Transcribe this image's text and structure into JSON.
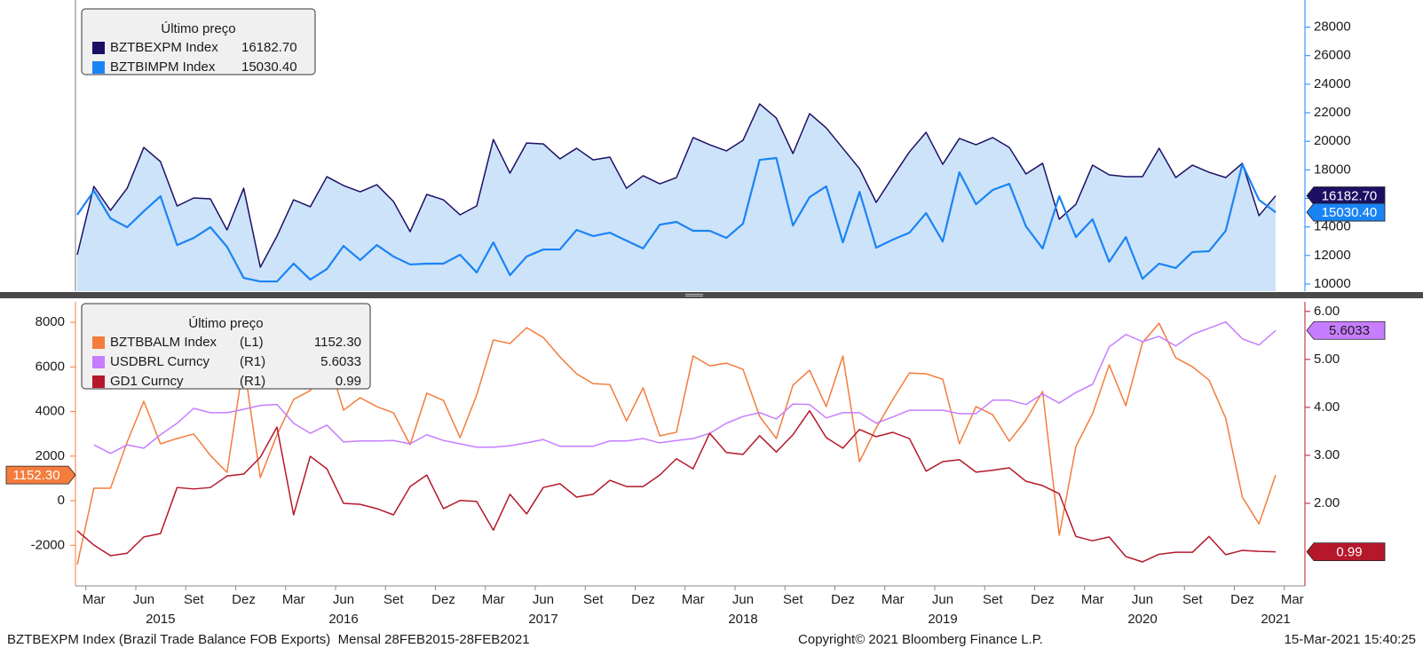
{
  "chart_data": [
    {
      "type": "line",
      "legend_title": "Último preço",
      "y_axis_side": "right",
      "y_axis_color": "#1a84f5",
      "ylim": [
        9500,
        29900
      ],
      "yticks": [
        10000,
        12000,
        14000,
        16000,
        18000,
        20000,
        22000,
        24000,
        26000,
        28000
      ],
      "series": [
        {
          "name": "BZTBEXPM Index",
          "last_label": "16182.70",
          "color": "#1c1064",
          "tag_text_color": "#ffffff",
          "area_color": "#cde3fa",
          "values": [
            12050,
            16840,
            15160,
            16710,
            19570,
            18580,
            15470,
            16030,
            15970,
            13790,
            16710,
            11180,
            13360,
            15900,
            15410,
            17520,
            16900,
            16460,
            16960,
            15780,
            13670,
            16280,
            15900,
            14850,
            15470,
            20130,
            17770,
            19880,
            19820,
            18770,
            19510,
            18700,
            18890,
            16710,
            17590,
            17020,
            17460,
            20260,
            19760,
            19330,
            20070,
            22620,
            21630,
            19140,
            21940,
            20940,
            19510,
            18080,
            15720,
            17520,
            19260,
            20630,
            18390,
            20200,
            19760,
            20260,
            19570,
            17710,
            18460,
            14540,
            15590,
            18330,
            17650,
            17520,
            17520,
            19510,
            17460,
            18330,
            17830,
            17460,
            18460,
            14790,
            16182.7
          ]
        },
        {
          "name": "BZTBIMPM Index",
          "last_label": "15030.40",
          "color": "#1a84f5",
          "tag_text_color": "#ffffff",
          "values": [
            14850,
            16530,
            14600,
            13980,
            15100,
            16150,
            12730,
            13230,
            13980,
            12610,
            10430,
            10180,
            10180,
            11430,
            10310,
            11050,
            12670,
            11680,
            12730,
            11930,
            11370,
            11430,
            11430,
            12050,
            10810,
            12920,
            10620,
            11930,
            12420,
            12420,
            13790,
            13360,
            13600,
            13040,
            12490,
            14160,
            14350,
            13730,
            13730,
            13230,
            14230,
            18700,
            18830,
            14100,
            16090,
            16840,
            12920,
            16460,
            12550,
            13110,
            13600,
            14970,
            12980,
            17830,
            15590,
            16590,
            17020,
            14040,
            12490,
            16150,
            13290,
            14540,
            11550,
            13290,
            10370,
            11430,
            11120,
            12240,
            12300,
            13730,
            18390,
            15900,
            15030.4
          ]
        }
      ]
    },
    {
      "type": "line",
      "legend_title": "Último preço",
      "y_axis_color": "#f47c3c",
      "y2_axis_color": "#b5182b",
      "ylim": [
        -3820,
        8920
      ],
      "yticks": [
        -2000,
        0,
        2000,
        4000,
        6000,
        8000
      ],
      "y2lim": [
        0.28,
        6.2
      ],
      "y2ticks": [
        {
          "value": 2,
          "label": "2.00"
        },
        {
          "value": 3,
          "label": "3.00"
        },
        {
          "value": 4,
          "label": "4.00"
        },
        {
          "value": 5,
          "label": "5.00"
        },
        {
          "value": 6,
          "label": "6.00"
        }
      ],
      "series": [
        {
          "name": "BZTBBALM Index",
          "axis_label": "(L1)",
          "last_label": "1152.30",
          "color": "#f47c3c",
          "tag_text_color": "#ffffff",
          "values": [
            -2870,
            560,
            560,
            2630,
            4460,
            2550,
            2790,
            2990,
            2030,
            1270,
            6210,
            1040,
            2950,
            4540,
            4940,
            6530,
            4060,
            4620,
            4220,
            3940,
            2510,
            4820,
            4500,
            2830,
            4740,
            7210,
            7050,
            7760,
            7320,
            6450,
            5690,
            5250,
            5210,
            3580,
            5060,
            2910,
            3070,
            6490,
            6050,
            6170,
            5890,
            3780,
            2790,
            5180,
            5850,
            4220,
            6490,
            1750,
            3260,
            4540,
            5730,
            5690,
            5450,
            2550,
            4220,
            3860,
            2670,
            3620,
            4900,
            -1550,
            2430,
            3900,
            6090,
            4260,
            7090,
            7960,
            6410,
            6010,
            5410,
            3700,
            160,
            -1040,
            1152.3
          ]
        },
        {
          "name": "USDBRL Curncy",
          "axis_label": "(R1)",
          "last_label": "5.6033",
          "color": "#c77dff",
          "tag_text_color": "#1a1a1a",
          "axis": "y2",
          "values": [
            null,
            3.22,
            3.04,
            3.22,
            3.15,
            3.43,
            3.67,
            3.98,
            3.89,
            3.89,
            3.96,
            4.04,
            4.06,
            3.67,
            3.46,
            3.63,
            3.28,
            3.3,
            3.3,
            3.31,
            3.24,
            3.43,
            3.31,
            3.24,
            3.17,
            3.17,
            3.2,
            3.26,
            3.33,
            3.19,
            3.19,
            3.19,
            3.3,
            3.3,
            3.35,
            3.26,
            3.31,
            3.35,
            3.46,
            3.67,
            3.81,
            3.89,
            3.76,
            4.07,
            4.06,
            3.78,
            3.89,
            3.89,
            3.67,
            3.8,
            3.94,
            3.94,
            3.94,
            3.87,
            3.87,
            4.15,
            4.15,
            4.06,
            4.28,
            4.09,
            4.31,
            4.48,
            5.26,
            5.52,
            5.37,
            5.48,
            5.28,
            5.52,
            5.65,
            5.78,
            5.43,
            5.3,
            5.6033
          ]
        },
        {
          "name": "GD1 Curncy",
          "axis_label": "(R1)",
          "last_label": "0.99",
          "color": "#b5182b",
          "tag_text_color": "#ffffff",
          "axis": "y2",
          "values": [
            1.43,
            1.13,
            0.91,
            0.96,
            1.3,
            1.37,
            2.33,
            2.3,
            2.33,
            2.57,
            2.61,
            2.96,
            3.59,
            1.76,
            2.98,
            2.72,
            2.0,
            1.98,
            1.89,
            1.76,
            2.35,
            2.59,
            1.89,
            2.06,
            2.04,
            1.44,
            2.19,
            1.78,
            2.33,
            2.41,
            2.13,
            2.19,
            2.48,
            2.35,
            2.35,
            2.59,
            2.93,
            2.72,
            3.46,
            3.06,
            3.02,
            3.41,
            3.07,
            3.43,
            3.93,
            3.37,
            3.15,
            3.54,
            3.39,
            3.48,
            3.35,
            2.67,
            2.87,
            2.91,
            2.65,
            2.69,
            2.74,
            2.46,
            2.37,
            2.2,
            1.31,
            1.22,
            1.3,
            0.89,
            0.78,
            0.94,
            0.98,
            0.98,
            1.31,
            0.93,
            1.02,
            1.0,
            0.99
          ]
        }
      ]
    }
  ],
  "x_axis": {
    "x": [
      "2015-02",
      "2015-03",
      "2015-04",
      "2015-05",
      "2015-06",
      "2015-07",
      "2015-08",
      "2015-09",
      "2015-10",
      "2015-11",
      "2015-12",
      "2016-01",
      "2016-02",
      "2016-03",
      "2016-04",
      "2016-05",
      "2016-06",
      "2016-07",
      "2016-08",
      "2016-09",
      "2016-10",
      "2016-11",
      "2016-12",
      "2017-01",
      "2017-02",
      "2017-03",
      "2017-04",
      "2017-05",
      "2017-06",
      "2017-07",
      "2017-08",
      "2017-09",
      "2017-10",
      "2017-11",
      "2017-12",
      "2018-01",
      "2018-02",
      "2018-03",
      "2018-04",
      "2018-05",
      "2018-06",
      "2018-07",
      "2018-08",
      "2018-09",
      "2018-10",
      "2018-11",
      "2018-12",
      "2019-01",
      "2019-02",
      "2019-03",
      "2019-04",
      "2019-05",
      "2019-06",
      "2019-07",
      "2019-08",
      "2019-09",
      "2019-10",
      "2019-11",
      "2019-12",
      "2020-01",
      "2020-02",
      "2020-03",
      "2020-04",
      "2020-05",
      "2020-06",
      "2020-07",
      "2020-08",
      "2020-09",
      "2020-10",
      "2020-11",
      "2020-12",
      "2021-01",
      "2021-02"
    ],
    "xticks": [
      {
        "value": "2015-03",
        "label": "Mar"
      },
      {
        "value": "2015-06",
        "label": "Jun"
      },
      {
        "value": "2015-09",
        "label": "Set"
      },
      {
        "value": "2015-12",
        "label": "Dez"
      },
      {
        "value": "2016-03",
        "label": "Mar"
      },
      {
        "value": "2016-06",
        "label": "Jun"
      },
      {
        "value": "2016-09",
        "label": "Set"
      },
      {
        "value": "2016-12",
        "label": "Dez"
      },
      {
        "value": "2017-03",
        "label": "Mar"
      },
      {
        "value": "2017-06",
        "label": "Jun"
      },
      {
        "value": "2017-09",
        "label": "Set"
      },
      {
        "value": "2017-12",
        "label": "Dez"
      },
      {
        "value": "2018-03",
        "label": "Mar"
      },
      {
        "value": "2018-06",
        "label": "Jun"
      },
      {
        "value": "2018-09",
        "label": "Set"
      },
      {
        "value": "2018-12",
        "label": "Dez"
      },
      {
        "value": "2019-03",
        "label": "Mar"
      },
      {
        "value": "2019-06",
        "label": "Jun"
      },
      {
        "value": "2019-09",
        "label": "Set"
      },
      {
        "value": "2019-12",
        "label": "Dez"
      },
      {
        "value": "2020-03",
        "label": "Mar"
      },
      {
        "value": "2020-06",
        "label": "Jun"
      },
      {
        "value": "2020-09",
        "label": "Set"
      },
      {
        "value": "2020-12",
        "label": "Dez"
      },
      {
        "value": "2021-03",
        "label": "Mar"
      }
    ],
    "years": [
      {
        "value": "2015-07",
        "label": "2015"
      },
      {
        "value": "2016-06",
        "label": "2016"
      },
      {
        "value": "2017-06",
        "label": "2017"
      },
      {
        "value": "2018-06",
        "label": "2018"
      },
      {
        "value": "2019-06",
        "label": "2019"
      },
      {
        "value": "2020-06",
        "label": "2020"
      },
      {
        "value": "2021-02",
        "label": "2021"
      }
    ]
  },
  "footer": {
    "left": "BZTBEXPM Index (Brazil Trade Balance FOB Exports)  Mensal 28FEB2015-28FEB2021",
    "center": "Copyright© 2021 Bloomberg Finance L.P.",
    "right": "15-Mar-2021 15:40:25"
  }
}
